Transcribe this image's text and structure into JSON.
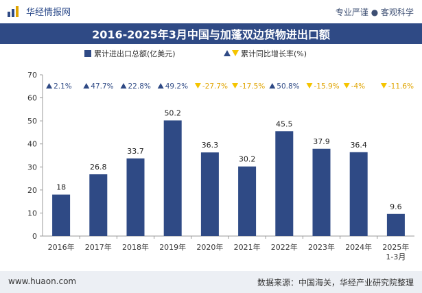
{
  "header": {
    "brand": "华经情报网",
    "tagline": "专业严谨 ● 客观科学"
  },
  "footer": {
    "website": "www.huaon.com",
    "source": "数据来源：中国海关，华经产业研究院整理"
  },
  "colors": {
    "bar": "#2f4a85",
    "up": "#2f4a85",
    "down": "#f5c400",
    "title_bg": "#2f4a85"
  },
  "chart_data": {
    "type": "bar",
    "title": "2016-2025年3月中国与加蓬双边货物进出口额",
    "legend": [
      "累计进出口总额(亿美元)",
      "累计同比增长率(%)"
    ],
    "legend_placement": "top",
    "categories": [
      "2016年",
      "2017年",
      "2018年",
      "2019年",
      "2020年",
      "2021年",
      "2022年",
      "2023年",
      "2024年",
      "2025年 1-3月"
    ],
    "category_lines": [
      [
        "2016年"
      ],
      [
        "2017年"
      ],
      [
        "2018年"
      ],
      [
        "2019年"
      ],
      [
        "2020年"
      ],
      [
        "2021年"
      ],
      [
        "2022年"
      ],
      [
        "2023年"
      ],
      [
        "2024年"
      ],
      [
        "2025年",
        "1-3月"
      ]
    ],
    "series": [
      {
        "name": "累计进出口总额(亿美元)",
        "values": [
          18,
          26.8,
          33.7,
          50.2,
          36.3,
          30.2,
          45.5,
          37.9,
          36.4,
          9.6
        ]
      }
    ],
    "value_labels": [
      "18",
      "26.8",
      "33.7",
      "50.2",
      "36.3",
      "30.2",
      "45.5",
      "37.9",
      "36.4",
      "9.6"
    ],
    "growth_values": [
      2.1,
      47.7,
      22.8,
      49.2,
      -27.7,
      -17.5,
      50.8,
      -15.9,
      -4,
      -11.6
    ],
    "growth_labels": [
      "2.1%",
      "47.7%",
      "22.8%",
      "49.2%",
      "-27.7%",
      "-17.5%",
      "50.8%",
      "-15.9%",
      "-4%",
      "-11.6%"
    ],
    "ylim": [
      0,
      70
    ],
    "yticks": [
      "0",
      "10",
      "20",
      "30",
      "40",
      "50",
      "60",
      "70"
    ],
    "grid": false
  }
}
